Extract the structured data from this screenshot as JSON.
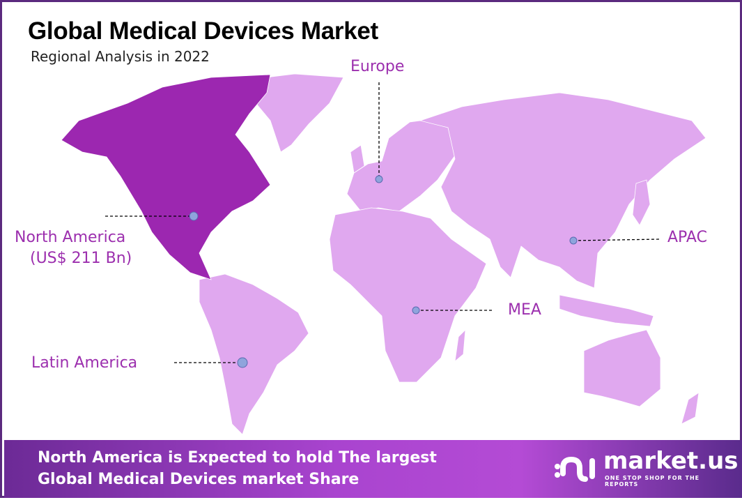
{
  "title": "Global Medical Devices Market",
  "subtitle": "Regional Analysis in 2022",
  "colors": {
    "highlight_region": "#9c27b0",
    "other_regions": "#e0a8ef",
    "label": "#9c2fae",
    "marker": "#8fa4dc"
  },
  "regions": [
    {
      "name": "North America",
      "value": "(US$ 211 Bn)",
      "highlighted": true
    },
    {
      "name": "Europe",
      "highlighted": false
    },
    {
      "name": "APAC",
      "highlighted": false
    },
    {
      "name": "MEA",
      "highlighted": false
    },
    {
      "name": "Latin America",
      "highlighted": false
    }
  ],
  "footer": {
    "line1": "North America is Expected to hold The largest",
    "line2": "Global Medical Devices market Share"
  },
  "logo": {
    "name": "market.us",
    "tagline": "ONE STOP SHOP FOR THE REPORTS"
  }
}
